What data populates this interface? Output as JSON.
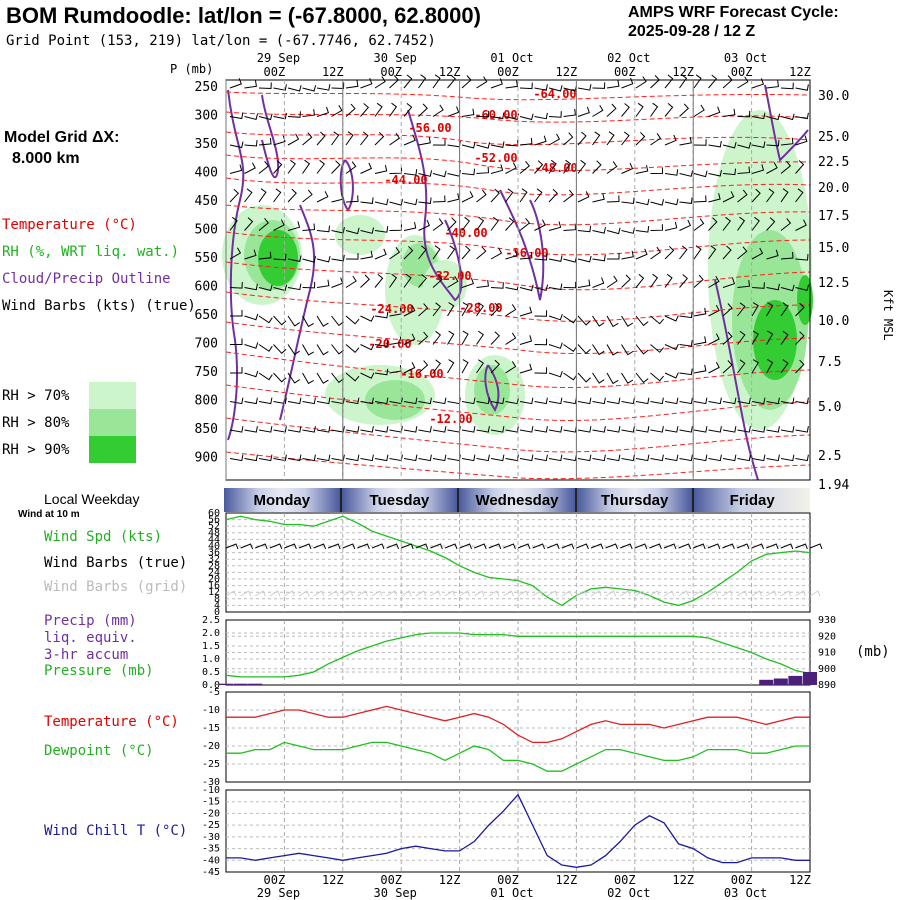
{
  "header": {
    "title": "BOM Rumdoodle:  lat/lon = (-67.8000, 62.8000)",
    "subtitle": "Grid Point (153, 219) lat/lon = (-67.7746, 62.7452)",
    "cycle_line1": "AMPS WRF Forecast Cycle:",
    "cycle_line2": "2025-09-28 / 12  Z"
  },
  "model_grid": {
    "label": "Model Grid ΔX:",
    "value": "8.000 km"
  },
  "legend": {
    "temperature": "Temperature (°C)",
    "rh": "RH (%, WRT liq. wat.)",
    "cloud": "Cloud/Precip Outline",
    "wind": "Wind Barbs (kts) (true)",
    "rh70": "RH > 70%",
    "rh80": "RH > 80%",
    "rh90": "RH > 90%",
    "colors": {
      "rh70": "#ccf5cc",
      "rh80": "#99e699",
      "rh90": "#33cc33",
      "temperature": "#ff0000",
      "cloud": "#7030a0"
    }
  },
  "time_axis": {
    "hour_labels": [
      "00Z",
      "12Z",
      "00Z",
      "12Z",
      "00Z",
      "12Z",
      "00Z",
      "12Z",
      "00Z",
      "12Z"
    ],
    "date_labels": [
      "29 Sep",
      "30 Sep",
      "01 Oct",
      "02 Oct",
      "03 Oct"
    ]
  },
  "weekday": {
    "heading": "Local Weekday",
    "days": [
      "Monday",
      "Tuesday",
      "Wednesday",
      "Thursday",
      "Friday"
    ]
  },
  "panel_labels": {
    "wind_at": "Wind at 10 m",
    "wind_spd": "Wind Spd (kts)",
    "wind_barbs_true": "Wind Barbs (true)",
    "wind_barbs_grid": "Wind Barbs (grid)",
    "precip1": "Precip (mm)",
    "precip2": "liq. equiv.",
    "precip3": "3-hr accum",
    "pressure": "Pressure (mb)",
    "pressure_unit": "(mb)",
    "temperature": "Temperature (°C)",
    "dewpoint": "Dewpoint (°C)",
    "windchill": "Wind Chill T (°C)"
  },
  "chart_data": [
    {
      "type": "heatmap",
      "name": "time-height cross section",
      "ylabel": "P (mb)",
      "y2label": "Kft MSL",
      "pressure_ticks": [
        "250",
        "300",
        "350",
        "400",
        "450",
        "500",
        "550",
        "600",
        "650",
        "700",
        "750",
        "800",
        "850",
        "900"
      ],
      "kft_ticks": [
        "30.0",
        "25.0",
        "22.5",
        "20.0",
        "17.5",
        "15.0",
        "12.5",
        "10.0",
        "7.5",
        "5.0",
        "2.5",
        "1.94"
      ],
      "temperature_labels": [
        "-64.00",
        "-60.00",
        "-56.00",
        "-52.00",
        "-48.00",
        "-44.00",
        "-40.00",
        "-36.00",
        "-32.00",
        "-28.00",
        "-24.00",
        "-20.00",
        "-16.00",
        "-12.00"
      ]
    },
    {
      "type": "line",
      "name": "10 m wind speed",
      "y_ticks": [
        "60",
        "56",
        "52",
        "48",
        "44",
        "40",
        "36",
        "32",
        "28",
        "24",
        "20",
        "16",
        "12",
        "8",
        "4",
        "0"
      ],
      "x_hours": [
        0,
        3,
        6,
        9,
        12,
        15,
        18,
        21,
        24,
        27,
        30,
        33,
        36,
        39,
        42,
        45,
        48,
        51,
        54,
        57,
        60,
        63,
        66,
        69,
        72,
        75,
        78,
        81,
        84,
        87,
        90,
        93,
        96,
        99,
        102,
        105,
        108,
        111,
        114,
        117,
        120
      ],
      "values": [
        56,
        58,
        56,
        55,
        53,
        53,
        52,
        55,
        58,
        54,
        49,
        46,
        43,
        40,
        37,
        33,
        28,
        24,
        21,
        20,
        19,
        16,
        9,
        4,
        10,
        14,
        15,
        14,
        13,
        10,
        6,
        4,
        7,
        12,
        18,
        24,
        31,
        35,
        36,
        37,
        36
      ],
      "ylim": [
        0,
        60
      ]
    },
    {
      "type": "line",
      "name": "pressure and precip",
      "y_ticks": [
        "2.5",
        "2.0",
        "1.5",
        "1.0",
        "0.5",
        "0.0"
      ],
      "y2_ticks": [
        "930",
        "920",
        "910",
        "900",
        "890"
      ],
      "pressure": [
        896,
        895,
        895,
        895,
        895,
        896,
        898,
        903,
        907,
        911,
        914,
        917,
        919,
        921,
        922,
        922,
        922,
        921,
        921,
        921,
        920,
        920,
        920,
        920,
        920,
        920,
        920,
        920,
        920,
        920,
        920,
        920,
        920,
        919,
        916,
        913,
        910,
        906,
        903,
        899,
        897
      ],
      "precip": [
        0.05,
        0.05,
        0.05,
        0,
        0,
        0,
        0,
        0,
        0,
        0,
        0,
        0,
        0,
        0,
        0,
        0,
        0,
        0,
        0,
        0,
        0,
        0,
        0,
        0,
        0,
        0,
        0,
        0,
        0,
        0,
        0,
        0,
        0,
        0,
        0,
        0,
        0,
        0.2,
        0.25,
        0.35,
        0.5
      ],
      "ylim": [
        0,
        2.5
      ],
      "y2lim": [
        890,
        930
      ]
    },
    {
      "type": "line",
      "name": "temperature and dewpoint",
      "y_ticks": [
        "-5",
        "-10",
        "-15",
        "-20",
        "-25",
        "-30"
      ],
      "series": [
        {
          "name": "Temperature (°C)",
          "values": [
            -12,
            -12,
            -12,
            -11,
            -10,
            -10,
            -11,
            -12,
            -12,
            -11,
            -10,
            -9,
            -10,
            -11,
            -12,
            -13,
            -12,
            -11,
            -12,
            -14,
            -17,
            -19,
            -19,
            -18,
            -16,
            -14,
            -13,
            -14,
            -14,
            -14,
            -15,
            -14,
            -13,
            -12,
            -12,
            -12,
            -13,
            -14,
            -13,
            -12,
            -12
          ]
        },
        {
          "name": "Dewpoint (°C)",
          "values": [
            -22,
            -22,
            -21,
            -21,
            -19,
            -20,
            -21,
            -21,
            -21,
            -20,
            -19,
            -19,
            -20,
            -21,
            -22,
            -24,
            -22,
            -20,
            -21,
            -24,
            -24,
            -25,
            -27,
            -27,
            -25,
            -23,
            -21,
            -21,
            -22,
            -23,
            -24,
            -24,
            -23,
            -21,
            -21,
            -21,
            -22,
            -22,
            -21,
            -20,
            -20
          ]
        }
      ],
      "ylim": [
        -30,
        -5
      ]
    },
    {
      "type": "line",
      "name": "wind chill",
      "y_ticks": [
        "-10",
        "-15",
        "-20",
        "-25",
        "-30",
        "-35",
        "-40",
        "-45"
      ],
      "values": [
        -39,
        -39,
        -40,
        -39,
        -38,
        -37,
        -38,
        -39,
        -40,
        -39,
        -38,
        -37,
        -35,
        -34,
        -35,
        -36,
        -36,
        -32,
        -25,
        -19,
        -12,
        -25,
        -38,
        -42,
        -43,
        -42,
        -38,
        -32,
        -25,
        -21,
        -24,
        -33,
        -35,
        -39,
        -41,
        -41,
        -39,
        -39,
        -39,
        -40,
        -40
      ],
      "ylim": [
        -45,
        -10
      ]
    }
  ]
}
